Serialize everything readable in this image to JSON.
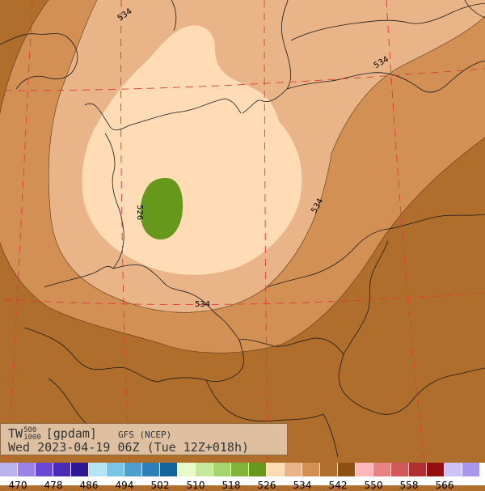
{
  "map": {
    "product": "TW",
    "level_top": "500",
    "level_bottom": "1000",
    "unit": "[gpdam]",
    "model": "GFS (NCEP)",
    "run": "Wed 2023-04-19 06Z (Tue 12Z+018h)",
    "contour_labels": [
      "534",
      "534",
      "534",
      "526",
      "534"
    ]
  },
  "legend": {
    "colors": [
      "#b9b2ee",
      "#9a83e6",
      "#6b48d4",
      "#4a2ab8",
      "#2d1895",
      "#b4e4f6",
      "#7cc4e6",
      "#4f9fce",
      "#2d7fb8",
      "#14649c",
      "#e8fac8",
      "#c5e89a",
      "#a5d66d",
      "#80b436",
      "#66991b",
      "#ffdcb6",
      "#e9b488",
      "#d29055",
      "#b06e2c",
      "#8b5214",
      "#ffb8b8",
      "#e88383",
      "#d05858",
      "#b22f2f",
      "#940f0f",
      "#cdc3f6",
      "#a895ec"
    ],
    "ticks": [
      "470",
      "478",
      "486",
      "494",
      "502",
      "510",
      "518",
      "526",
      "534",
      "542",
      "550",
      "558",
      "566"
    ]
  }
}
